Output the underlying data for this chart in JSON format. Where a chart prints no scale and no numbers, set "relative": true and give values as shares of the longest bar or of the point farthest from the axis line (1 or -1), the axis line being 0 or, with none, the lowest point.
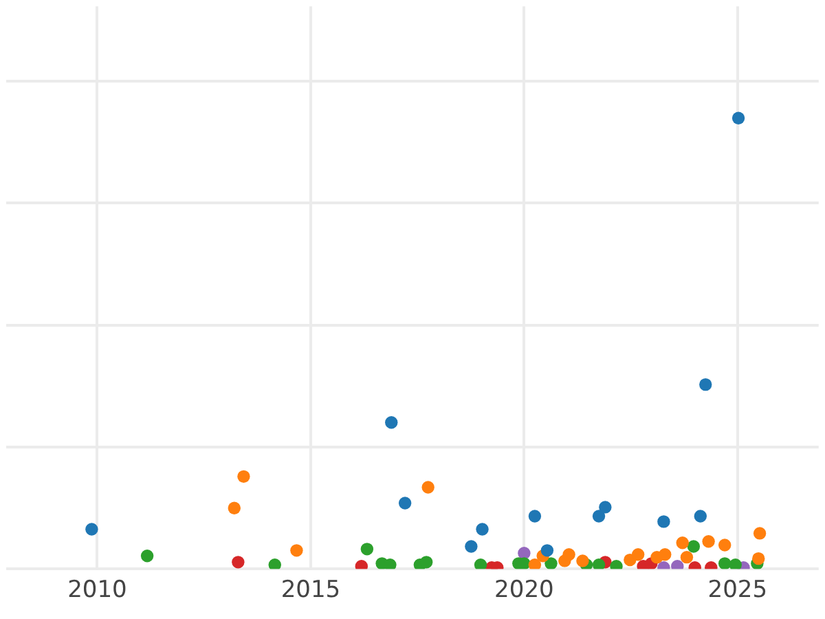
{
  "chart_data": {
    "type": "scatter",
    "relative": true,
    "xlim": [
      2007.87,
      2026.9
    ],
    "xticks": [
      2010,
      2015,
      2020,
      2025
    ],
    "grid": true,
    "legend": false,
    "marker": "circle",
    "series": [
      {
        "color": "#1f77b4",
        "x": [
          2009.87,
          2016.89,
          2017.21,
          2018.76,
          2019.02,
          2020.25,
          2020.54,
          2021.75,
          2021.9,
          2023.27,
          2024.13,
          2024.25,
          2025.02
        ],
        "values": [
          0.088,
          0.325,
          0.146,
          0.05,
          0.088,
          0.117,
          0.041,
          0.117,
          0.137,
          0.105,
          0.117,
          0.409,
          1
        ]
      },
      {
        "color": "#ff7f0e",
        "x": [
          2013.21,
          2013.43,
          2014.67,
          2017.75,
          2020.25,
          2020.44,
          2020.95,
          2021.05,
          2021.37,
          2022.48,
          2022.67,
          2023.11,
          2023.3,
          2023.71,
          2023.81,
          2024.32,
          2024.7,
          2025.52,
          2025.49
        ],
        "values": [
          0.135,
          0.205,
          0.041,
          0.181,
          0.009,
          0.029,
          0.018,
          0.032,
          0.018,
          0.02,
          0.032,
          0.026,
          0.032,
          0.058,
          0.026,
          0.061,
          0.053,
          0.079,
          0.023
        ]
      },
      {
        "color": "#2ca02c",
        "x": [
          2011.17,
          2014.16,
          2016.32,
          2016.67,
          2016.86,
          2017.56,
          2017.71,
          2018.98,
          2019.87,
          2020,
          2020.63,
          2021.46,
          2021.75,
          2022.16,
          2023.97,
          2024.7,
          2024.95,
          2025.46
        ],
        "values": [
          0.029,
          0.009,
          0.044,
          0.012,
          0.009,
          0.009,
          0.015,
          0.009,
          0.012,
          0.012,
          0.012,
          0.009,
          0.009,
          0.006,
          0.05,
          0.012,
          0.009,
          0.012
        ]
      },
      {
        "color": "#d62728",
        "x": [
          2013.3,
          2016.19,
          2019.24,
          2019.37,
          2021.9,
          2022.79,
          2022.98,
          2024,
          2024.38
        ],
        "values": [
          0.015,
          0.006,
          0.003,
          0.003,
          0.015,
          0.006,
          0.012,
          0.003,
          0.003
        ]
      },
      {
        "color": "#9467bd",
        "x": [
          2020,
          2023.27,
          2023.59,
          2025.14
        ],
        "values": [
          0.035,
          0.003,
          0.006,
          0.003
        ]
      }
    ]
  }
}
